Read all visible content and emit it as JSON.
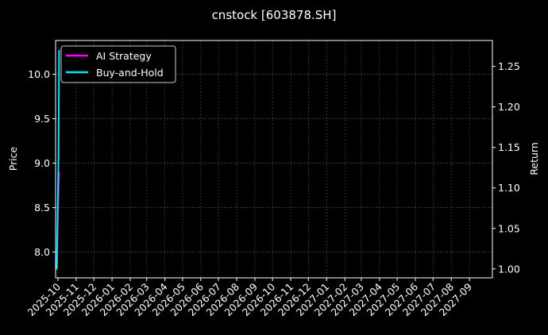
{
  "chart_data": {
    "type": "line",
    "title": "cnstock [603878.SH]",
    "ylabel_left": "Price",
    "ylabel_right": "Return",
    "xlim": [
      "2025-09-27",
      "2027-10-10"
    ],
    "ylim_left": [
      7.71,
      10.38
    ],
    "ylim_right": [
      0.989,
      1.282
    ],
    "yticks_left": [
      "8.0",
      "8.5",
      "9.0",
      "9.5",
      "10.0"
    ],
    "yticks_right": [
      "1.00",
      "1.05",
      "1.10",
      "1.15",
      "1.20",
      "1.25"
    ],
    "xticks": [
      "2025-10",
      "2025-11",
      "2025-12",
      "2026-01",
      "2026-02",
      "2026-03",
      "2026-04",
      "2026-05",
      "2026-06",
      "2026-07",
      "2026-08",
      "2026-09",
      "2026-10",
      "2026-11",
      "2026-12",
      "2027-01",
      "2027-02",
      "2027-03",
      "2027-04",
      "2027-05",
      "2027-06",
      "2027-07",
      "2027-08",
      "2027-09"
    ],
    "grid": true,
    "legend_position": "top-left",
    "price": {
      "axis": "left",
      "color": "#8fb8e8",
      "x": [
        "2025-09-29",
        "2025-10-02",
        "2025-10-03"
      ],
      "y": [
        7.8,
        8.9,
        10.27
      ]
    },
    "series": [
      {
        "name": "AI Strategy",
        "axis": "right",
        "color": "#ff00ff",
        "x": [
          "2025-09-29",
          "2025-10-02",
          "2025-10-03"
        ],
        "y": [
          1.0,
          1.1,
          1.12
        ]
      },
      {
        "name": "Buy-and-Hold",
        "axis": "right",
        "color": "#00e5ff",
        "x": [
          "2025-09-29",
          "2025-10-02",
          "2025-10-03"
        ],
        "y": [
          1.0,
          1.14,
          1.27
        ]
      }
    ]
  }
}
